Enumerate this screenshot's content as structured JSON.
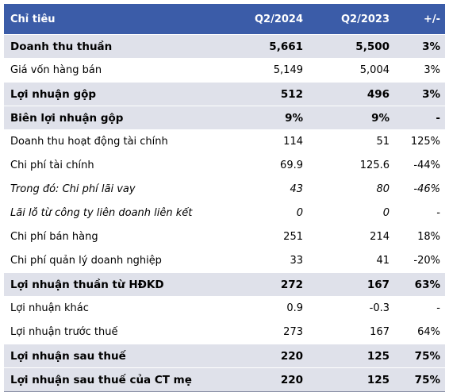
{
  "header": {
    "label": "Chỉ tiêu",
    "col1": "Q2/2024",
    "col2": "Q2/2023",
    "col3": "+/-"
  },
  "rows": [
    {
      "label": "Doanh thu thuần",
      "q2_2024": "5,661",
      "q2_2023": "5,500",
      "change": "3%",
      "bold": true
    },
    {
      "label": "Giá vốn hàng bán",
      "q2_2024": "5,149",
      "q2_2023": "5,004",
      "change": "3%",
      "bold": false
    },
    {
      "label": "Lợi nhuận gộp",
      "q2_2024": "512",
      "q2_2023": "496",
      "change": "3%",
      "bold": true
    },
    {
      "label": "Biên lợi nhuận gộp",
      "q2_2024": "9%",
      "q2_2023": "9%",
      "change": "-",
      "bold": true
    },
    {
      "label": "Doanh thu hoạt động tài chính",
      "q2_2024": "114",
      "q2_2023": "51",
      "change": "125%",
      "bold": false
    },
    {
      "label": "Chi phí tài chính",
      "q2_2024": "69.9",
      "q2_2023": "125.6",
      "change": "-44%",
      "bold": false
    },
    {
      "label": "Trong đó: Chi phí lãi vay",
      "q2_2024": "43",
      "q2_2023": "80",
      "change": "-46%",
      "bold": false,
      "italic": true
    },
    {
      "label": "Lãi lỗ từ công ty liên doanh liên kết",
      "q2_2024": "0",
      "q2_2023": "0",
      "change": "-",
      "bold": false,
      "italic": true
    },
    {
      "label": "Chi phí bán hàng",
      "q2_2024": "251",
      "q2_2023": "214",
      "change": "18%",
      "bold": false
    },
    {
      "label": "Chi phí quản lý doanh nghiệp",
      "q2_2024": "33",
      "q2_2023": "41",
      "change": "-20%",
      "bold": false
    },
    {
      "label": "Lợi nhuận thuần từ HĐKD",
      "q2_2024": "272",
      "q2_2023": "167",
      "change": "63%",
      "bold": true
    },
    {
      "label": "Lợi nhuận khác",
      "q2_2024": "0.9",
      "q2_2023": "-0.3",
      "change": "-",
      "bold": false
    },
    {
      "label": "Lợi nhuận trước thuế",
      "q2_2024": "273",
      "q2_2023": "167",
      "change": "64%",
      "bold": false
    },
    {
      "label": "Lợi nhuận sau thuế",
      "q2_2024": "220",
      "q2_2023": "125",
      "change": "75%",
      "bold": true
    },
    {
      "label": "Lợi nhuận sau thuế của CT mẹ",
      "q2_2024": "220",
      "q2_2023": "125",
      "change": "75%",
      "bold": true
    }
  ],
  "colors": {
    "header_bg": "#3b5ca8",
    "bold_row_bg": "#dfe1ea"
  }
}
